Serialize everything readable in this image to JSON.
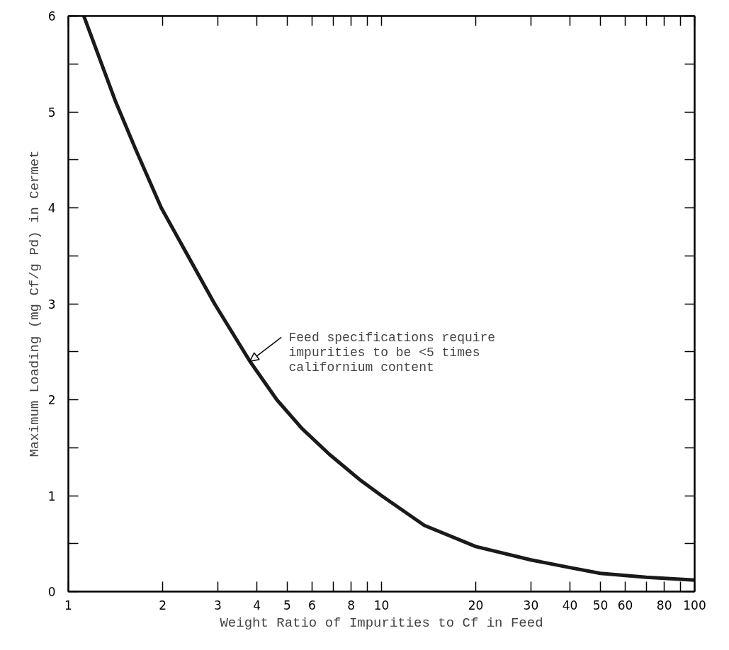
{
  "chart_data": {
    "type": "line",
    "xlabel": "Weight Ratio of Impurities to Cf in Feed",
    "ylabel": "Maximum Loading (mg Cf/g Pd) in Cermet",
    "log": "x",
    "xlim": [
      1,
      100
    ],
    "ylim": [
      0,
      6
    ],
    "xticks": [
      1,
      2,
      3,
      4,
      5,
      6,
      {
        "value": 7,
        "label": null
      },
      8,
      {
        "value": 9,
        "label": null
      },
      10,
      20,
      30,
      40,
      50,
      60,
      {
        "value": 70,
        "label": null
      },
      80,
      {
        "value": 90,
        "label": null
      },
      100
    ],
    "yticks": [
      0,
      {
        "value": 0.5,
        "label": null
      },
      1,
      {
        "value": 1.5,
        "label": null
      },
      2,
      {
        "value": 2.5,
        "label": null
      },
      3,
      {
        "value": 3.5,
        "label": null
      },
      4,
      {
        "value": 4.5,
        "label": null
      },
      5,
      {
        "value": 5.5,
        "label": null
      },
      6
    ],
    "grid": false,
    "marker": "none",
    "line_style": "solid",
    "series": [
      {
        "color": "#1a1a1a",
        "x": [
          1.12,
          1.41,
          1.64,
          1.98,
          2.93,
          3.8,
          4.63,
          5.57,
          6.82,
          8.57,
          10,
          13.7,
          20,
          30,
          40,
          50,
          70,
          100
        ],
        "values": [
          6,
          5.12,
          4.61,
          4.0,
          3.0,
          2.4,
          2.0,
          1.7,
          1.43,
          1.16,
          1.0,
          0.69,
          0.47,
          0.33,
          0.25,
          0.19,
          0.15,
          0.12
        ]
      }
    ],
    "annotations": [
      {
        "text": "Feed specifications require\nimpurities to be <5 times\ncalifornium content",
        "x": 3.8,
        "y": 2.4
      }
    ]
  }
}
